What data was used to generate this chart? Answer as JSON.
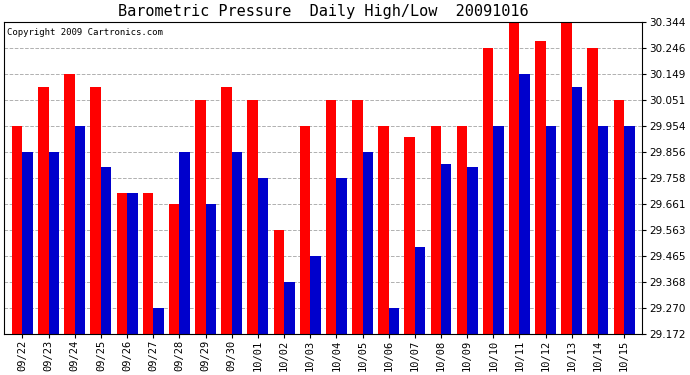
{
  "title": "Barometric Pressure  Daily High/Low  20091016",
  "copyright": "Copyright 2009 Cartronics.com",
  "categories": [
    "09/22",
    "09/23",
    "09/24",
    "09/25",
    "09/26",
    "09/27",
    "09/28",
    "09/29",
    "09/30",
    "10/01",
    "10/02",
    "10/03",
    "10/04",
    "10/05",
    "10/06",
    "10/07",
    "10/08",
    "10/09",
    "10/10",
    "10/11",
    "10/12",
    "10/13",
    "10/14",
    "10/15"
  ],
  "highs": [
    29.954,
    30.1,
    30.149,
    30.1,
    29.7,
    29.7,
    29.661,
    30.051,
    30.1,
    30.051,
    29.563,
    29.954,
    30.051,
    30.051,
    29.954,
    29.91,
    29.954,
    29.954,
    30.246,
    30.344,
    30.27,
    30.344,
    30.246,
    30.051
  ],
  "lows": [
    29.856,
    29.856,
    29.954,
    29.8,
    29.7,
    29.27,
    29.856,
    29.661,
    29.856,
    29.758,
    29.368,
    29.465,
    29.758,
    29.856,
    29.27,
    29.5,
    29.81,
    29.8,
    29.954,
    30.149,
    29.954,
    30.1,
    29.954,
    29.954
  ],
  "high_color": "#ff0000",
  "low_color": "#0000cc",
  "background_color": "#ffffff",
  "plot_background": "#ffffff",
  "ylim": [
    29.172,
    30.344
  ],
  "yticks": [
    29.172,
    29.27,
    29.368,
    29.465,
    29.563,
    29.661,
    29.758,
    29.856,
    29.954,
    30.051,
    30.149,
    30.246,
    30.344
  ],
  "grid_color": "#b0b0b0",
  "title_fontsize": 11,
  "tick_fontsize": 7.5,
  "bar_width": 0.4,
  "figwidth": 6.9,
  "figheight": 3.75,
  "dpi": 100
}
